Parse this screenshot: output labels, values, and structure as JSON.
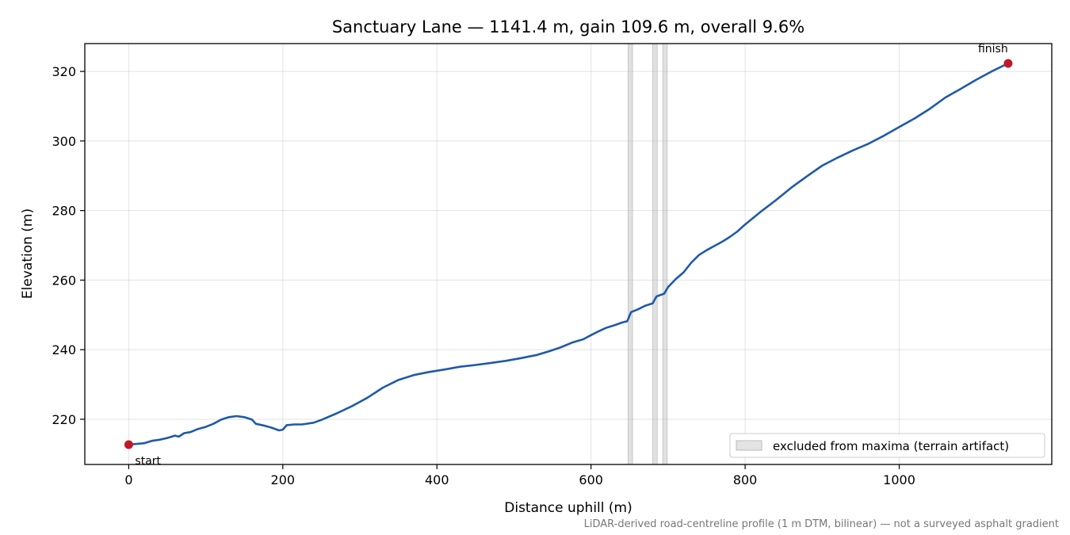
{
  "chart_data": {
    "type": "line",
    "title": "Sanctuary Lane — 1141.4 m, gain 109.6 m, overall 9.6%",
    "xlabel": "Distance uphill (m)",
    "ylabel": "Elevation (m)",
    "xlim": [
      -57,
      1198
    ],
    "ylim": [
      207,
      328
    ],
    "xticks": [
      0,
      200,
      400,
      600,
      800,
      1000
    ],
    "yticks": [
      220,
      240,
      260,
      280,
      300,
      320
    ],
    "grid": true,
    "series": [
      {
        "color": "#1f5aa8",
        "points": [
          [
            0,
            212.7
          ],
          [
            20,
            213.1
          ],
          [
            30,
            213.8
          ],
          [
            40,
            214.1
          ],
          [
            50,
            214.6
          ],
          [
            60,
            215.3
          ],
          [
            65,
            215.0
          ],
          [
            72,
            216.0
          ],
          [
            80,
            216.3
          ],
          [
            90,
            217.2
          ],
          [
            100,
            217.8
          ],
          [
            110,
            218.7
          ],
          [
            120,
            219.9
          ],
          [
            130,
            220.6
          ],
          [
            140,
            220.9
          ],
          [
            150,
            220.6
          ],
          [
            160,
            219.9
          ],
          [
            165,
            218.7
          ],
          [
            175,
            218.2
          ],
          [
            185,
            217.6
          ],
          [
            195,
            216.8
          ],
          [
            200,
            217.0
          ],
          [
            205,
            218.3
          ],
          [
            215,
            218.5
          ],
          [
            225,
            218.5
          ],
          [
            240,
            219.0
          ],
          [
            250,
            219.8
          ],
          [
            270,
            221.7
          ],
          [
            290,
            223.8
          ],
          [
            310,
            226.2
          ],
          [
            330,
            229.1
          ],
          [
            350,
            231.3
          ],
          [
            370,
            232.7
          ],
          [
            390,
            233.6
          ],
          [
            410,
            234.3
          ],
          [
            430,
            235.1
          ],
          [
            450,
            235.6
          ],
          [
            470,
            236.2
          ],
          [
            490,
            236.8
          ],
          [
            510,
            237.6
          ],
          [
            530,
            238.5
          ],
          [
            545,
            239.5
          ],
          [
            560,
            240.6
          ],
          [
            575,
            242.0
          ],
          [
            590,
            243.0
          ],
          [
            600,
            244.2
          ],
          [
            610,
            245.3
          ],
          [
            620,
            246.3
          ],
          [
            630,
            247.0
          ],
          [
            640,
            247.8
          ],
          [
            647,
            248.2
          ],
          [
            652,
            250.8
          ],
          [
            660,
            251.5
          ],
          [
            670,
            252.6
          ],
          [
            680,
            253.3
          ],
          [
            685,
            255.3
          ],
          [
            695,
            256.1
          ],
          [
            700,
            258.0
          ],
          [
            710,
            260.3
          ],
          [
            720,
            262.2
          ],
          [
            730,
            265.0
          ],
          [
            740,
            267.2
          ],
          [
            750,
            268.6
          ],
          [
            760,
            269.8
          ],
          [
            770,
            271.0
          ],
          [
            780,
            272.4
          ],
          [
            790,
            274.0
          ],
          [
            800,
            276.0
          ],
          [
            820,
            279.6
          ],
          [
            840,
            283.0
          ],
          [
            860,
            286.6
          ],
          [
            880,
            289.8
          ],
          [
            900,
            292.9
          ],
          [
            920,
            295.2
          ],
          [
            940,
            297.3
          ],
          [
            960,
            299.2
          ],
          [
            980,
            301.5
          ],
          [
            1000,
            304.0
          ],
          [
            1020,
            306.5
          ],
          [
            1040,
            309.3
          ],
          [
            1060,
            312.5
          ],
          [
            1080,
            315.0
          ],
          [
            1100,
            317.6
          ],
          [
            1120,
            320.0
          ],
          [
            1141.4,
            322.3
          ]
        ]
      }
    ],
    "markers": [
      {
        "label": "start",
        "x": 0,
        "y": 212.7,
        "color": "#c0182a"
      },
      {
        "label": "finish",
        "x": 1141.4,
        "y": 322.3,
        "color": "#c0182a"
      }
    ],
    "excluded_ranges": [
      [
        648,
        654
      ],
      [
        680,
        686
      ],
      [
        693,
        699
      ]
    ],
    "excluded_color": "#cccccc",
    "legend": {
      "label": "excluded from maxima (terrain artifact)",
      "placement": "lower-right"
    },
    "footnote": "LiDAR-derived road-centreline profile (1 m DTM, bilinear) — not a surveyed asphalt gradient"
  }
}
